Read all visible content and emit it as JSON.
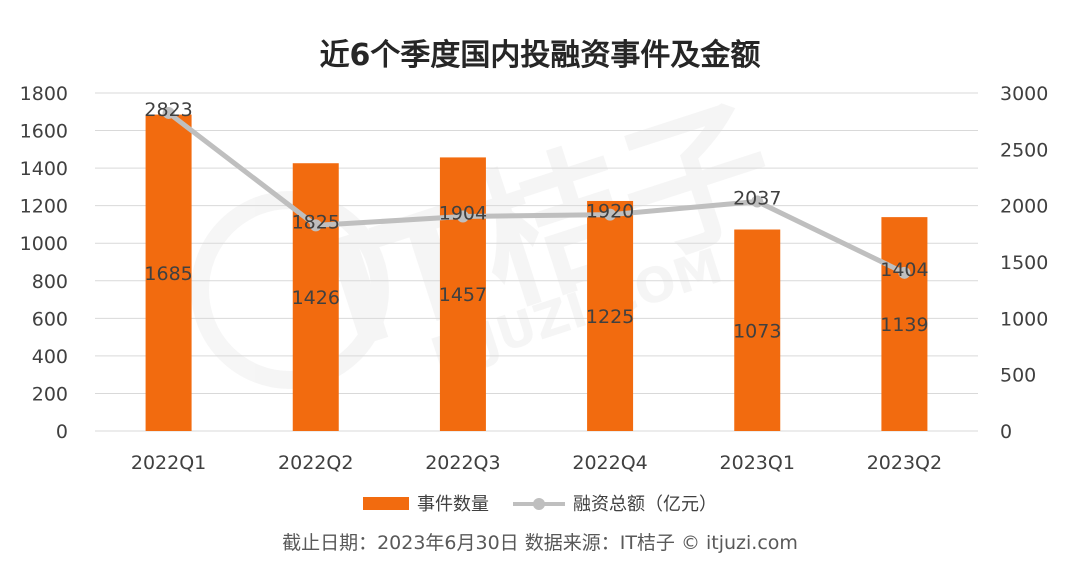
{
  "title": "近6个季度国内投融资事件及金额",
  "note": "截止日期：2023年6月30日   数据来源：IT桔子 © itjuzi.com",
  "watermark": {
    "brand": "IT桔子",
    "site": "ITJUZI.COM"
  },
  "colors": {
    "bar": "#F26B0F",
    "line": "#BFBFBF",
    "grid": "#D9D9D9",
    "axis_text": "#404040"
  },
  "chart_data": {
    "type": "bar+line",
    "title": "近6个季度国内投融资事件及金额",
    "categories": [
      "2022Q1",
      "2022Q2",
      "2022Q3",
      "2022Q4",
      "2023Q1",
      "2023Q2"
    ],
    "series": [
      {
        "name": "事件数量",
        "type": "bar",
        "axis": "left",
        "values": [
          1685,
          1426,
          1457,
          1225,
          1073,
          1139
        ]
      },
      {
        "name": "融资总额（亿元）",
        "type": "line",
        "axis": "right",
        "values": [
          2823,
          1825,
          1904,
          1920,
          2037,
          1404
        ]
      }
    ],
    "y_left": {
      "min": 0,
      "max": 1800,
      "ticks": [
        0,
        200,
        400,
        600,
        800,
        1000,
        1200,
        1400,
        1600,
        1800
      ]
    },
    "y_right": {
      "min": 0,
      "max": 3000,
      "ticks": [
        0,
        500,
        1000,
        1500,
        2000,
        2500,
        3000
      ]
    },
    "grid": true,
    "legend_position": "bottom"
  }
}
